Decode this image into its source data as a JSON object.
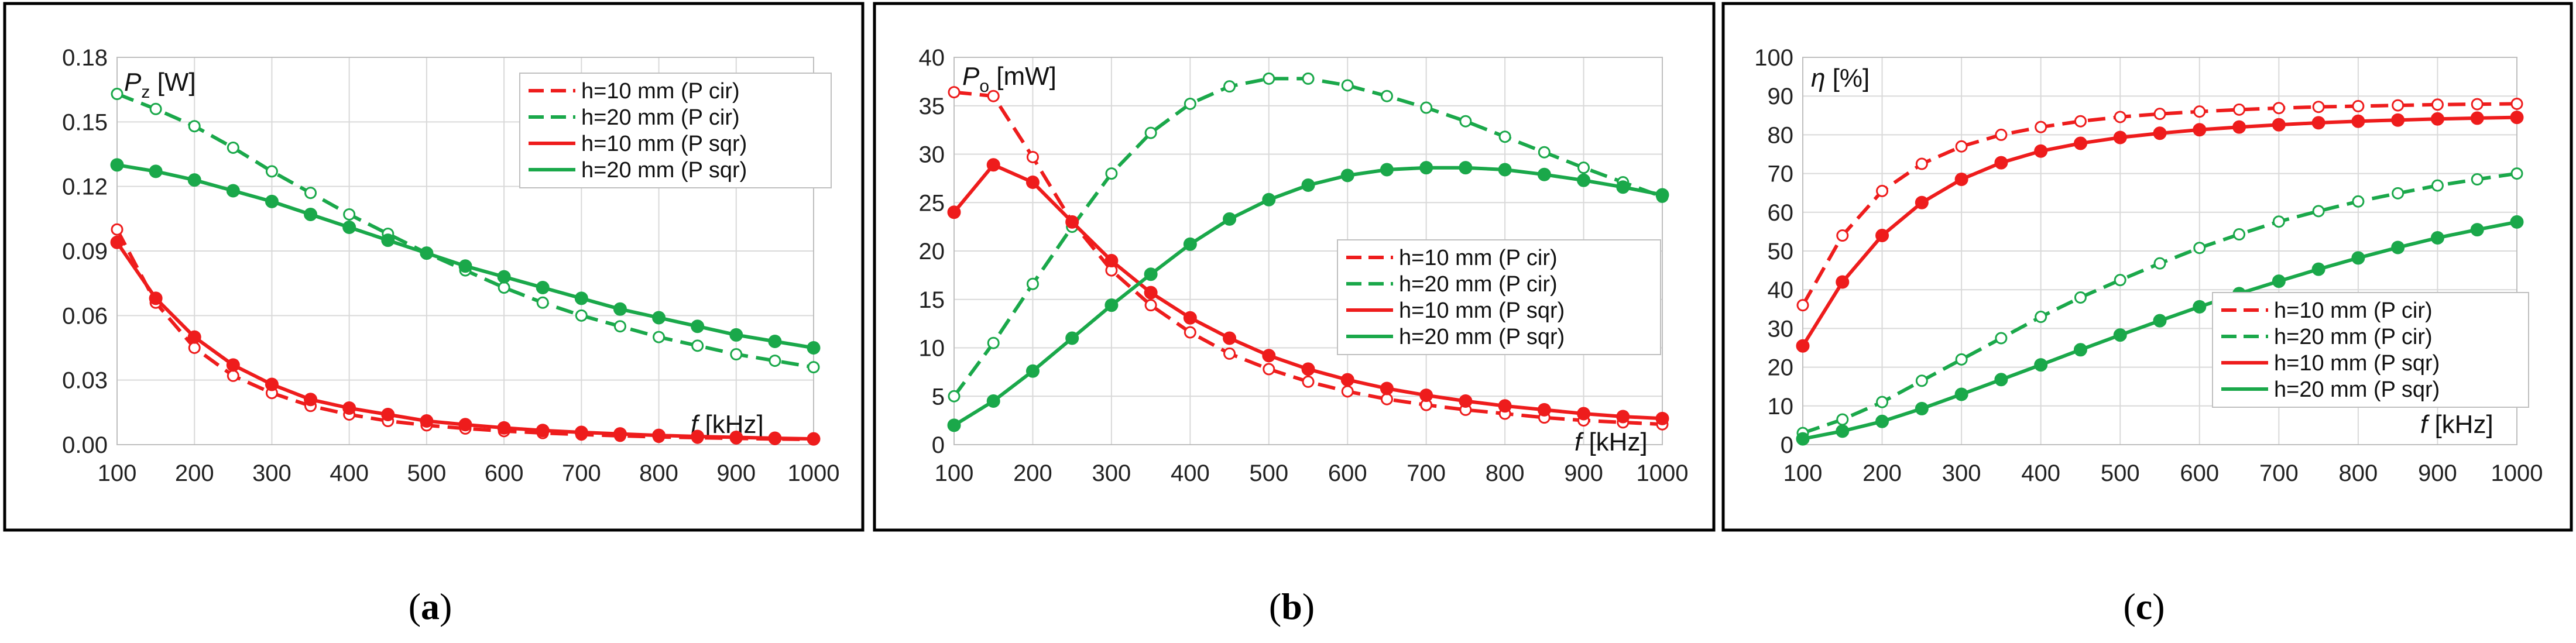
{
  "figure": {
    "panels": [
      {
        "id": "a",
        "caption_open": "(",
        "caption_letter": "a",
        "caption_close": ")"
      },
      {
        "id": "b",
        "caption_open": "(",
        "caption_letter": "b",
        "caption_close": ")"
      },
      {
        "id": "c",
        "caption_open": "(",
        "caption_letter": "c",
        "caption_close": ")"
      }
    ]
  },
  "colors": {
    "red": "#ee1c1c",
    "green": "#1aa84a",
    "grid": "#d9d9d9",
    "frame": "#000000",
    "axis_text": "#222222"
  },
  "chart_data": [
    {
      "type": "line",
      "title": "",
      "ylabel_symbol": "P",
      "ylabel_sub": "z",
      "ylabel_unit": "[W]",
      "xlabel_symbol": "f",
      "xlabel_unit": "[kHz]",
      "xlim": [
        100,
        1000
      ],
      "ylim": [
        0,
        0.18
      ],
      "xticks": [
        100,
        200,
        300,
        400,
        500,
        600,
        700,
        800,
        900,
        1000
      ],
      "yticks": [
        "0.00",
        "0.03",
        "0.06",
        "0.09",
        "0.12",
        "0.15",
        "0.18"
      ],
      "grid": true,
      "legend_position": "top-right",
      "x": [
        100,
        150,
        200,
        250,
        300,
        350,
        400,
        450,
        500,
        550,
        600,
        650,
        700,
        750,
        800,
        850,
        900,
        950,
        1000
      ],
      "series": [
        {
          "name": "h=10 mm (P cir)",
          "color": "red",
          "dashed": true,
          "filled": false,
          "values": [
            0.1,
            0.066,
            0.045,
            0.032,
            0.024,
            0.018,
            0.014,
            0.011,
            0.009,
            0.0075,
            0.0063,
            0.0054,
            0.0047,
            0.0041,
            0.0036,
            0.0032,
            0.0029,
            0.0026,
            0.0024
          ]
        },
        {
          "name": "h=20 mm (P cir)",
          "color": "green",
          "dashed": true,
          "filled": false,
          "values": [
            0.163,
            0.156,
            0.148,
            0.138,
            0.127,
            0.117,
            0.107,
            0.098,
            0.089,
            0.081,
            0.073,
            0.066,
            0.06,
            0.055,
            0.05,
            0.046,
            0.042,
            0.039,
            0.036
          ]
        },
        {
          "name": "h=10 mm (P sqr)",
          "color": "red",
          "dashed": false,
          "filled": true,
          "values": [
            0.094,
            0.068,
            0.05,
            0.037,
            0.028,
            0.021,
            0.017,
            0.014,
            0.011,
            0.0093,
            0.0078,
            0.0066,
            0.0057,
            0.005,
            0.0043,
            0.0038,
            0.0034,
            0.003,
            0.0027
          ]
        },
        {
          "name": "h=20 mm (P sqr)",
          "color": "green",
          "dashed": false,
          "filled": true,
          "values": [
            0.13,
            0.127,
            0.123,
            0.118,
            0.113,
            0.107,
            0.101,
            0.095,
            0.089,
            0.083,
            0.078,
            0.073,
            0.068,
            0.063,
            0.059,
            0.055,
            0.051,
            0.048,
            0.045
          ]
        }
      ]
    },
    {
      "type": "line",
      "title": "",
      "ylabel_symbol": "P",
      "ylabel_sub": "o",
      "ylabel_unit": "[mW]",
      "xlabel_symbol": "f",
      "xlabel_unit": "[kHz]",
      "xlim": [
        100,
        1000
      ],
      "ylim": [
        0,
        40
      ],
      "xticks": [
        100,
        200,
        300,
        400,
        500,
        600,
        700,
        800,
        900,
        1000
      ],
      "yticks": [
        "0",
        "5",
        "10",
        "15",
        "20",
        "25",
        "30",
        "35",
        "40"
      ],
      "grid": true,
      "legend_position": "center-right",
      "x": [
        100,
        150,
        200,
        250,
        300,
        350,
        400,
        450,
        500,
        550,
        600,
        650,
        700,
        750,
        800,
        850,
        900,
        950,
        1000
      ],
      "series": [
        {
          "name": "h=10 mm (P cir)",
          "color": "red",
          "dashed": true,
          "filled": false,
          "values": [
            36.4,
            36.0,
            29.7,
            23.0,
            18.0,
            14.4,
            11.6,
            9.4,
            7.8,
            6.5,
            5.5,
            4.7,
            4.1,
            3.6,
            3.2,
            2.8,
            2.5,
            2.3,
            2.1
          ]
        },
        {
          "name": "h=20 mm (P cir)",
          "color": "green",
          "dashed": true,
          "filled": false,
          "values": [
            5.0,
            10.5,
            16.6,
            22.5,
            28.0,
            32.2,
            35.2,
            37.0,
            37.8,
            37.8,
            37.1,
            36.0,
            34.8,
            33.4,
            31.8,
            30.2,
            28.6,
            27.1,
            25.6
          ]
        },
        {
          "name": "h=10 mm (P sqr)",
          "color": "red",
          "dashed": false,
          "filled": true,
          "values": [
            24.0,
            28.9,
            27.1,
            23.0,
            19.0,
            15.7,
            13.1,
            11.0,
            9.2,
            7.8,
            6.7,
            5.8,
            5.1,
            4.5,
            4.0,
            3.6,
            3.2,
            2.9,
            2.7
          ]
        },
        {
          "name": "h=20 mm (P sqr)",
          "color": "green",
          "dashed": false,
          "filled": true,
          "values": [
            2.0,
            4.5,
            7.6,
            11.0,
            14.4,
            17.6,
            20.7,
            23.3,
            25.3,
            26.8,
            27.8,
            28.4,
            28.6,
            28.6,
            28.4,
            27.9,
            27.3,
            26.6,
            25.8
          ]
        }
      ]
    },
    {
      "type": "line",
      "title": "",
      "ylabel_symbol": "η",
      "ylabel_sub": "",
      "ylabel_unit": "[%]",
      "xlabel_symbol": "f",
      "xlabel_unit": "[kHz]",
      "xlim": [
        100,
        1000
      ],
      "ylim": [
        0,
        100
      ],
      "xticks": [
        100,
        200,
        300,
        400,
        500,
        600,
        700,
        800,
        900,
        1000
      ],
      "yticks": [
        "0",
        "10",
        "20",
        "30",
        "40",
        "50",
        "60",
        "70",
        "80",
        "90",
        "100"
      ],
      "grid": true,
      "legend_position": "center-right",
      "x": [
        100,
        150,
        200,
        250,
        300,
        350,
        400,
        450,
        500,
        550,
        600,
        650,
        700,
        750,
        800,
        850,
        900,
        950,
        1000
      ],
      "series": [
        {
          "name": "h=10 mm (P cir)",
          "color": "red",
          "dashed": true,
          "filled": false,
          "values": [
            36.0,
            54.0,
            65.5,
            72.5,
            77.0,
            80.0,
            82.0,
            83.5,
            84.6,
            85.4,
            86.0,
            86.5,
            86.9,
            87.2,
            87.4,
            87.6,
            87.8,
            87.9,
            88.0
          ]
        },
        {
          "name": "h=20 mm (P cir)",
          "color": "green",
          "dashed": true,
          "filled": false,
          "values": [
            3.0,
            6.5,
            11.0,
            16.5,
            22.0,
            27.5,
            33.0,
            38.0,
            42.5,
            46.8,
            50.8,
            54.3,
            57.6,
            60.3,
            62.8,
            64.9,
            66.9,
            68.5,
            70.0
          ]
        },
        {
          "name": "h=10 mm (P sqr)",
          "color": "red",
          "dashed": false,
          "filled": true,
          "values": [
            25.5,
            42.0,
            54.0,
            62.5,
            68.5,
            72.8,
            75.8,
            77.8,
            79.3,
            80.4,
            81.3,
            82.0,
            82.6,
            83.1,
            83.5,
            83.8,
            84.1,
            84.3,
            84.5
          ]
        },
        {
          "name": "h=20 mm (P sqr)",
          "color": "green",
          "dashed": false,
          "filled": true,
          "values": [
            1.5,
            3.5,
            6.0,
            9.3,
            13.0,
            16.8,
            20.6,
            24.5,
            28.3,
            32.0,
            35.6,
            39.0,
            42.2,
            45.3,
            48.2,
            50.9,
            53.4,
            55.5,
            57.5
          ]
        }
      ]
    }
  ]
}
